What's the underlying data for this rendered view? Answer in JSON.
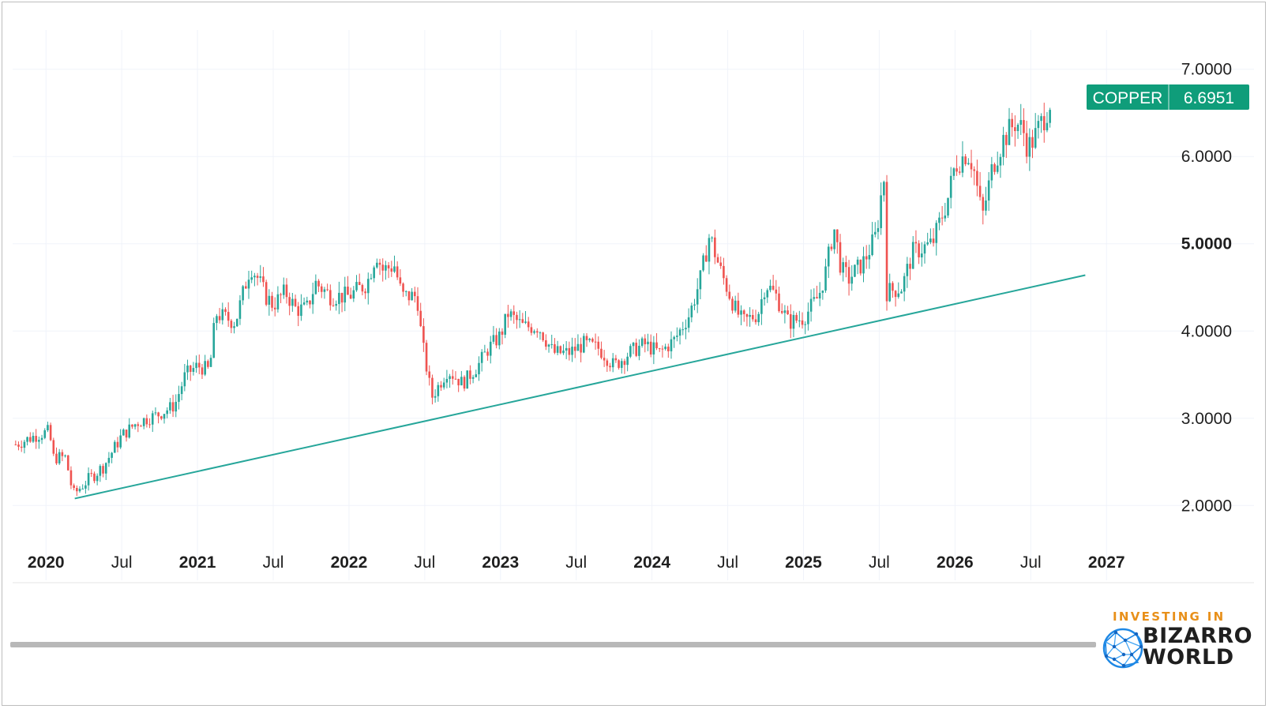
{
  "colors": {
    "up": "#26a69a",
    "down": "#ef5350",
    "trendline": "#26a69a",
    "badge": "#0f9d7a",
    "gridline": "#f0f3fa",
    "axis_text": "#1f1f1f"
  },
  "price_badge": {
    "symbol": "COPPER",
    "value": "6.6951"
  },
  "logo": {
    "line1": "INVESTING IN",
    "line2": "BIZARRO",
    "line3": "WORLD",
    "icon": "globe-network-icon"
  },
  "chart_data": {
    "type": "candlestick",
    "symbol": "COPPER",
    "last_value": 6.6951,
    "x_range": [
      2019.78,
      2027.15
    ],
    "y_range": [
      1.55,
      7.45
    ],
    "y_scale": "linear",
    "grid": true,
    "x_ticks": [
      {
        "value": 2020.0,
        "label": "2020",
        "bold": true
      },
      {
        "value": 2020.5,
        "label": "Jul",
        "bold": false
      },
      {
        "value": 2021.0,
        "label": "2021",
        "bold": true
      },
      {
        "value": 2021.5,
        "label": "Jul",
        "bold": false
      },
      {
        "value": 2022.0,
        "label": "2022",
        "bold": true
      },
      {
        "value": 2022.5,
        "label": "Jul",
        "bold": false
      },
      {
        "value": 2023.0,
        "label": "2023",
        "bold": true
      },
      {
        "value": 2023.5,
        "label": "Jul",
        "bold": false
      },
      {
        "value": 2024.0,
        "label": "2024",
        "bold": true
      },
      {
        "value": 2024.5,
        "label": "Jul",
        "bold": false
      },
      {
        "value": 2025.0,
        "label": "2025",
        "bold": true
      },
      {
        "value": 2025.5,
        "label": "Jul",
        "bold": false
      },
      {
        "value": 2026.0,
        "label": "2026",
        "bold": true
      },
      {
        "value": 2026.5,
        "label": "Jul",
        "bold": false
      },
      {
        "value": 2027.0,
        "label": "2027",
        "bold": true
      }
    ],
    "y_ticks": [
      {
        "value": 2.0,
        "label": "2.0000",
        "bold": false
      },
      {
        "value": 3.0,
        "label": "3.0000",
        "bold": false
      },
      {
        "value": 4.0,
        "label": "4.0000",
        "bold": false
      },
      {
        "value": 5.0,
        "label": "5.0000",
        "bold": true
      },
      {
        "value": 6.0,
        "label": "6.0000",
        "bold": false
      },
      {
        "value": 7.0,
        "label": "7.0000",
        "bold": false
      }
    ],
    "trendline": {
      "x": [
        2020.19,
        2026.86
      ],
      "y": [
        2.08,
        4.64
      ]
    },
    "price_path": [
      [
        2019.8,
        2.7
      ],
      [
        2019.93,
        2.8
      ],
      [
        2020.02,
        2.85
      ],
      [
        2020.05,
        2.55
      ],
      [
        2020.13,
        2.55
      ],
      [
        2020.18,
        2.12
      ],
      [
        2020.25,
        2.25
      ],
      [
        2020.38,
        2.45
      ],
      [
        2020.5,
        2.8
      ],
      [
        2020.6,
        2.95
      ],
      [
        2020.75,
        3.05
      ],
      [
        2020.85,
        3.15
      ],
      [
        2020.92,
        3.5
      ],
      [
        2021.0,
        3.6
      ],
      [
        2021.08,
        3.55
      ],
      [
        2021.12,
        4.2
      ],
      [
        2021.25,
        4.1
      ],
      [
        2021.35,
        4.75
      ],
      [
        2021.4,
        4.6
      ],
      [
        2021.45,
        4.4
      ],
      [
        2021.5,
        4.3
      ],
      [
        2021.58,
        4.45
      ],
      [
        2021.65,
        4.25
      ],
      [
        2021.72,
        4.25
      ],
      [
        2021.78,
        4.55
      ],
      [
        2021.88,
        4.4
      ],
      [
        2022.0,
        4.4
      ],
      [
        2022.12,
        4.55
      ],
      [
        2022.18,
        4.9
      ],
      [
        2022.22,
        4.7
      ],
      [
        2022.3,
        4.75
      ],
      [
        2022.35,
        4.4
      ],
      [
        2022.45,
        4.4
      ],
      [
        2022.48,
        3.9
      ],
      [
        2022.53,
        3.4
      ],
      [
        2022.55,
        3.25
      ],
      [
        2022.65,
        3.55
      ],
      [
        2022.75,
        3.4
      ],
      [
        2022.85,
        3.6
      ],
      [
        2022.92,
        3.8
      ],
      [
        2023.0,
        3.95
      ],
      [
        2023.05,
        4.2
      ],
      [
        2023.15,
        4.05
      ],
      [
        2023.25,
        4.05
      ],
      [
        2023.35,
        3.75
      ],
      [
        2023.45,
        3.75
      ],
      [
        2023.55,
        3.85
      ],
      [
        2023.65,
        3.8
      ],
      [
        2023.75,
        3.6
      ],
      [
        2023.85,
        3.75
      ],
      [
        2023.95,
        3.85
      ],
      [
        2024.05,
        3.75
      ],
      [
        2024.15,
        3.9
      ],
      [
        2024.25,
        4.2
      ],
      [
        2024.32,
        4.6
      ],
      [
        2024.38,
        5.1
      ],
      [
        2024.45,
        4.7
      ],
      [
        2024.55,
        4.25
      ],
      [
        2024.6,
        4.1
      ],
      [
        2024.7,
        4.2
      ],
      [
        2024.75,
        4.55
      ],
      [
        2024.82,
        4.4
      ],
      [
        2024.9,
        4.1
      ],
      [
        2025.0,
        4.15
      ],
      [
        2025.1,
        4.4
      ],
      [
        2025.15,
        4.7
      ],
      [
        2025.2,
        5.2
      ],
      [
        2025.25,
        4.7
      ],
      [
        2025.3,
        4.6
      ],
      [
        2025.4,
        4.8
      ],
      [
        2025.48,
        5.1
      ],
      [
        2025.53,
        5.8
      ],
      [
        2025.55,
        4.45
      ],
      [
        2025.65,
        4.5
      ],
      [
        2025.72,
        4.9
      ],
      [
        2025.85,
        5.0
      ],
      [
        2025.95,
        5.5
      ],
      [
        2026.0,
        5.9
      ],
      [
        2026.08,
        6.05
      ],
      [
        2026.12,
        5.9
      ],
      [
        2026.18,
        5.3
      ],
      [
        2026.25,
        5.9
      ],
      [
        2026.32,
        6.2
      ],
      [
        2026.4,
        6.4
      ],
      [
        2026.45,
        6.3
      ],
      [
        2026.48,
        6.1
      ],
      [
        2026.52,
        6.2
      ],
      [
        2026.6,
        6.5
      ],
      [
        2026.64,
        6.69
      ]
    ]
  }
}
